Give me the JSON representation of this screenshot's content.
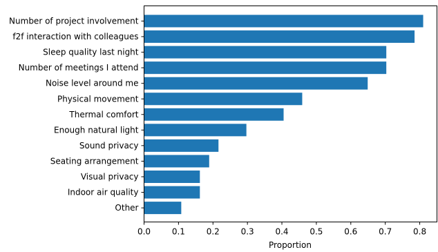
{
  "chart_data": {
    "type": "bar",
    "orientation": "horizontal",
    "categories": [
      "Number of project involvement",
      "f2f interaction with colleagues",
      "Sleep quality last night",
      "Number of meetings I attend",
      "Noise level around me",
      "Physical movement",
      "Thermal comfort",
      "Enough natural light",
      "Sound privacy",
      "Seating arrangement",
      "Visual privacy",
      "Indoor air quality",
      "Other"
    ],
    "values": [
      0.81,
      0.785,
      0.703,
      0.703,
      0.649,
      0.459,
      0.405,
      0.297,
      0.216,
      0.189,
      0.162,
      0.162,
      0.108
    ],
    "xlabel": "Proportion",
    "ylabel": "",
    "title": "",
    "xlim": [
      0,
      0.85
    ],
    "xticks": [
      "0.0",
      "0.1",
      "0.2",
      "0.3",
      "0.4",
      "0.5",
      "0.6",
      "0.7",
      "0.8"
    ],
    "bar_color": "#1f77b4",
    "grid": false,
    "legend": "none"
  }
}
